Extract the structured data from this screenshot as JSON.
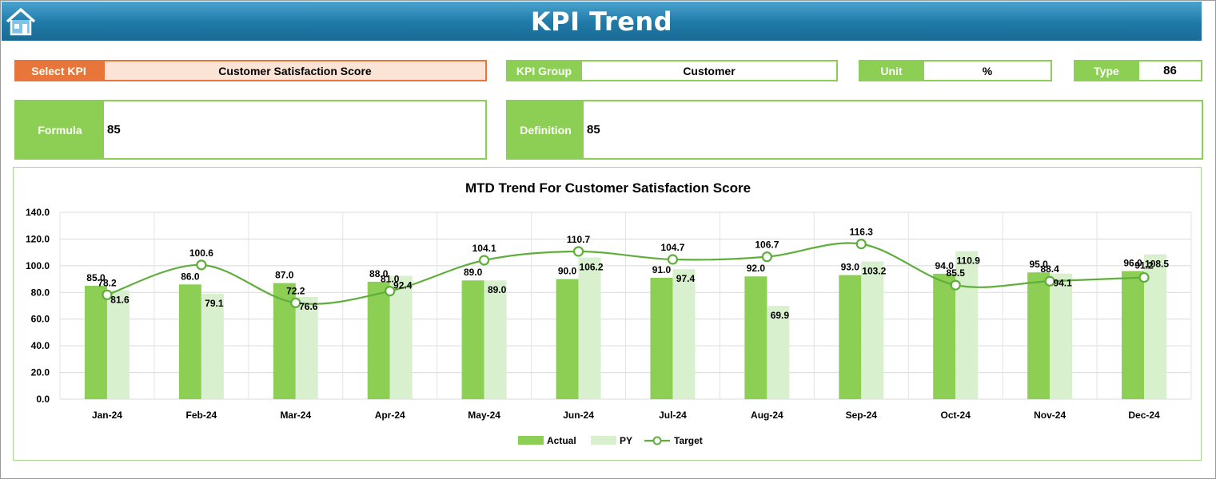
{
  "header": {
    "title": "KPI Trend"
  },
  "selectors": {
    "select_kpi_label": "Select KPI",
    "select_kpi_value": "Customer Satisfaction Score",
    "kpi_group_label": "KPI Group",
    "kpi_group_value": "Customer",
    "unit_label": "Unit",
    "unit_value": "%",
    "type_label": "Type",
    "type_value": "86"
  },
  "details": {
    "formula_label": "Formula",
    "formula_value": "85",
    "definition_label": "Definition",
    "definition_value": "85"
  },
  "colors": {
    "actual": "#8ccf54",
    "py": "#d9f0ce",
    "target": "#5fae3b",
    "accent_orange": "#e8753a"
  },
  "chart_data": {
    "type": "bar",
    "title": "MTD Trend For Customer Satisfaction Score",
    "categories": [
      "Jan-24",
      "Feb-24",
      "Mar-24",
      "Apr-24",
      "May-24",
      "Jun-24",
      "Jul-24",
      "Aug-24",
      "Sep-24",
      "Oct-24",
      "Nov-24",
      "Dec-24"
    ],
    "series": [
      {
        "name": "Actual",
        "type": "bar",
        "values": [
          85.0,
          86.0,
          87.0,
          88.0,
          89.0,
          90.0,
          91.0,
          92.0,
          93.0,
          94.0,
          95.0,
          96.0
        ]
      },
      {
        "name": "PY",
        "type": "bar",
        "values": [
          81.6,
          79.1,
          76.6,
          92.4,
          89.0,
          106.2,
          97.4,
          69.9,
          103.2,
          110.9,
          94.1,
          108.5
        ]
      },
      {
        "name": "Target",
        "type": "line",
        "values": [
          78.2,
          100.6,
          72.2,
          81.0,
          104.1,
          110.7,
          104.7,
          106.7,
          116.3,
          85.5,
          88.4,
          91.2
        ]
      }
    ],
    "ylim": [
      0,
      140
    ],
    "yticks": [
      "0.0",
      "20.0",
      "40.0",
      "60.0",
      "80.0",
      "100.0",
      "120.0",
      "140.0"
    ],
    "grid": true,
    "legend": "bottom"
  }
}
